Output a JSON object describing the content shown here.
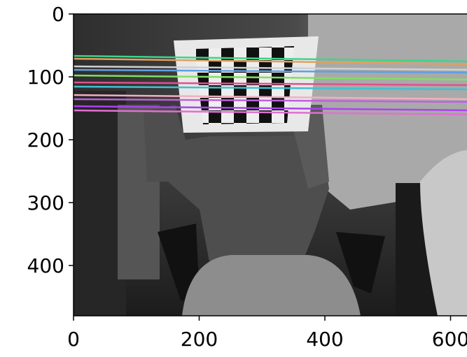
{
  "chart_data": {
    "type": "image",
    "xlim": [
      0,
      640
    ],
    "ylim": [
      480,
      0
    ],
    "xticks": [
      0,
      200,
      400,
      600
    ],
    "yticks": [
      0,
      100,
      200,
      300,
      400
    ]
  }
}
